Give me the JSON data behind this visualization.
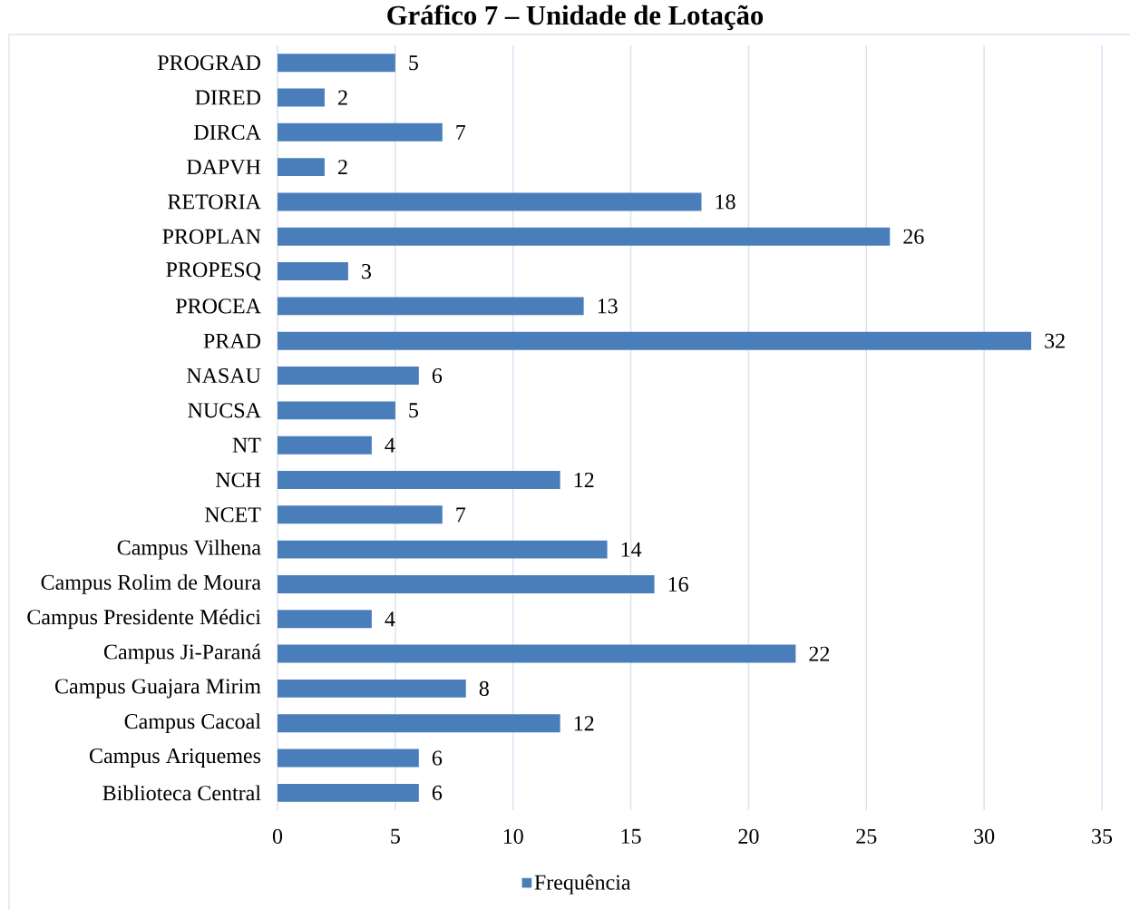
{
  "chart_data": {
    "type": "bar",
    "orientation": "horizontal",
    "title": "Gráfico 7 – Unidade de Lotação",
    "categories": [
      "PROGRAD",
      "DIRED",
      "DIRCA",
      "DAPVH",
      "RETORIA",
      "PROPLAN",
      "PROPESQ",
      "PROCEA",
      "PRAD",
      "NASAU",
      "NUCSA",
      "NT",
      "NCH",
      "NCET",
      "Campus Vilhena",
      "Campus Rolim de Moura",
      "Campus Presidente Médici",
      "Campus Ji-Paraná",
      "Campus Guajara Mirim",
      "Campus Cacoal",
      "Campus Ariquemes",
      "Biblioteca Central"
    ],
    "series": [
      {
        "name": "Frequência",
        "color": "#4a7ebb",
        "values": [
          5,
          2,
          7,
          2,
          18,
          26,
          3,
          13,
          32,
          6,
          5,
          4,
          12,
          7,
          14,
          16,
          4,
          22,
          8,
          12,
          6,
          6
        ]
      }
    ],
    "xlim": [
      0,
      35
    ],
    "xticks": [
      0,
      5,
      10,
      15,
      20,
      25,
      30,
      35
    ],
    "grid": "x",
    "legend": "bottom",
    "data_labels": true
  }
}
